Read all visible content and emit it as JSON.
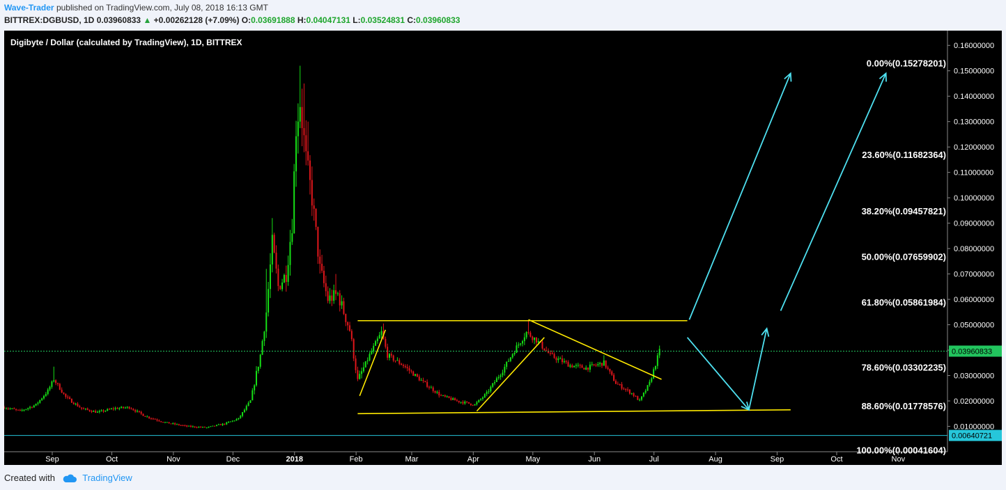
{
  "header": {
    "author": "Wave-Trader",
    "published": "published on TradingView.com, July 08, 2018 16:13 GMT",
    "symbol": "BITTREX:DGBUSD, 1D",
    "last": "0.03960833",
    "change_arrow": "▲",
    "change": "+0.00262128 (+7.09%)",
    "o_label": "O:",
    "o_value": "0.03691888",
    "h_label": "H:",
    "h_value": "0.04047131",
    "l_label": "L:",
    "l_value": "0.03524831",
    "c_label": "C:",
    "c_value": "0.03960833"
  },
  "footer": {
    "created_with": "Created with",
    "brand": "TradingView",
    "brand_icon": "cloud-icon"
  },
  "colors": {
    "up": "#16e016",
    "down": "#e0161b",
    "fib_text": "#ffffff",
    "yellow": "#ffea00",
    "cyan": "#4ee0f0",
    "price_tag": "#22c55e",
    "low_tag": "#26c6da",
    "axis_text": "#ffffff"
  },
  "chart_data": {
    "type": "candlestick",
    "title": "Digibyte / Dollar (calculated by TradingView), 1D, BITTREX",
    "ylim": [
      0.0,
      0.165
    ],
    "y_ticks": [
      "0.01000000",
      "0.02000000",
      "0.03000000",
      "0.04000000",
      "0.05000000",
      "0.06000000",
      "0.07000000",
      "0.08000000",
      "0.09000000",
      "0.10000000",
      "0.11000000",
      "0.12000000",
      "0.13000000",
      "0.14000000",
      "0.15000000",
      "0.16000000"
    ],
    "x_ticks": [
      "Sep",
      "Oct",
      "Nov",
      "Dec",
      "2018",
      "Feb",
      "Mar",
      "Apr",
      "May",
      "Jun",
      "Jul",
      "Aug",
      "Sep",
      "Oct",
      "Nov"
    ],
    "x_range": [
      "2017-08-12",
      "2018-11-30"
    ],
    "last_price": {
      "value": 0.03960833,
      "label": "0.03960833"
    },
    "low_line": {
      "value": 0.00640721,
      "label": "0.00640721"
    },
    "fib_levels": [
      {
        "value": 0.15278201,
        "label": "0.00%(0.15278201)"
      },
      {
        "value": 0.11682364,
        "label": "23.60%(0.11682364)"
      },
      {
        "value": 0.09457821,
        "label": "38.20%(0.09457821)"
      },
      {
        "value": 0.07659902,
        "label": "50.00%(0.07659902)"
      },
      {
        "value": 0.05861984,
        "label": "61.80%(0.05861984)"
      },
      {
        "value": 0.03302235,
        "label": "78.60%(0.03302235)"
      },
      {
        "value": 0.01778576,
        "label": "88.60%(0.01778576)"
      },
      {
        "value": 0.00041604,
        "label": "100.00%(0.00041604)"
      }
    ],
    "price_path": [
      [
        "2017-08-12",
        0.0175
      ],
      [
        "2017-08-20",
        0.016
      ],
      [
        "2017-08-28",
        0.0185
      ],
      [
        "2017-09-03",
        0.024
      ],
      [
        "2017-09-06",
        0.0285
      ],
      [
        "2017-09-12",
        0.0215
      ],
      [
        "2017-09-20",
        0.017
      ],
      [
        "2017-09-28",
        0.0155
      ],
      [
        "2017-10-06",
        0.017
      ],
      [
        "2017-10-14",
        0.0175
      ],
      [
        "2017-10-22",
        0.014
      ],
      [
        "2017-11-01",
        0.0115
      ],
      [
        "2017-11-12",
        0.01
      ],
      [
        "2017-11-22",
        0.0095
      ],
      [
        "2017-12-01",
        0.011
      ],
      [
        "2017-12-08",
        0.013
      ],
      [
        "2017-12-14",
        0.02
      ],
      [
        "2017-12-19",
        0.038
      ],
      [
        "2017-12-22",
        0.055
      ],
      [
        "2017-12-25",
        0.082
      ],
      [
        "2017-12-28",
        0.065
      ],
      [
        "2018-01-01",
        0.07
      ],
      [
        "2018-01-04",
        0.09
      ],
      [
        "2018-01-06",
        0.128
      ],
      [
        "2018-01-08",
        0.138
      ],
      [
        "2018-01-11",
        0.115
      ],
      [
        "2018-01-14",
        0.1
      ],
      [
        "2018-01-18",
        0.072
      ],
      [
        "2018-01-22",
        0.06
      ],
      [
        "2018-01-27",
        0.062
      ],
      [
        "2018-02-02",
        0.048
      ],
      [
        "2018-02-06",
        0.028
      ],
      [
        "2018-02-12",
        0.038
      ],
      [
        "2018-02-18",
        0.047
      ],
      [
        "2018-02-21",
        0.038
      ],
      [
        "2018-03-01",
        0.034
      ],
      [
        "2018-03-10",
        0.028
      ],
      [
        "2018-03-20",
        0.022
      ],
      [
        "2018-03-28",
        0.02
      ],
      [
        "2018-04-06",
        0.0185
      ],
      [
        "2018-04-12",
        0.023
      ],
      [
        "2018-04-20",
        0.032
      ],
      [
        "2018-04-26",
        0.04
      ],
      [
        "2018-05-02",
        0.047
      ],
      [
        "2018-05-07",
        0.044
      ],
      [
        "2018-05-14",
        0.038
      ],
      [
        "2018-05-24",
        0.034
      ],
      [
        "2018-06-01",
        0.033
      ],
      [
        "2018-06-10",
        0.035
      ],
      [
        "2018-06-16",
        0.027
      ],
      [
        "2018-06-24",
        0.023
      ],
      [
        "2018-06-28",
        0.02
      ],
      [
        "2018-07-03",
        0.027
      ],
      [
        "2018-07-08",
        0.0396
      ]
    ],
    "spikes": [
      [
        "2017-09-06",
        0.0335
      ],
      [
        "2017-12-22",
        0.072
      ],
      [
        "2017-12-25",
        0.092
      ],
      [
        "2018-01-08",
        0.152
      ],
      [
        "2018-01-10",
        0.145
      ],
      [
        "2018-01-12",
        0.13
      ],
      [
        "2018-01-26",
        0.07
      ],
      [
        "2018-02-19",
        0.0505
      ],
      [
        "2018-05-03",
        0.0515
      ],
      [
        "2018-06-10",
        0.038
      ]
    ],
    "trendlines": [
      {
        "from": [
          "2018-02-06",
          0.0516
        ],
        "to": [
          "2018-07-22",
          0.0516
        ],
        "color": "yellow"
      },
      {
        "from": [
          "2018-02-06",
          0.015
        ],
        "to": [
          "2018-09-12",
          0.0165
        ],
        "color": "yellow"
      },
      {
        "from": [
          "2018-02-07",
          0.022
        ],
        "to": [
          "2018-02-20",
          0.048
        ],
        "color": "yellow"
      },
      {
        "from": [
          "2018-04-07",
          0.016
        ],
        "to": [
          "2018-05-11",
          0.045
        ],
        "color": "yellow"
      },
      {
        "from": [
          "2018-05-03",
          0.052
        ],
        "to": [
          "2018-07-09",
          0.0285
        ],
        "color": "yellow"
      }
    ],
    "arrows": [
      {
        "from": [
          "2018-07-23",
          0.052
        ],
        "to": [
          "2018-09-12",
          0.149
        ],
        "color": "cyan"
      },
      {
        "from": [
          "2018-07-22",
          0.045
        ],
        "to": [
          "2018-08-22",
          0.0165
        ],
        "color": "cyan"
      },
      {
        "from": [
          "2018-08-22",
          0.0165
        ],
        "to": [
          "2018-08-31",
          0.0485
        ],
        "color": "cyan"
      },
      {
        "from": [
          "2018-09-07",
          0.0555
        ],
        "to": [
          "2018-10-30",
          0.149
        ],
        "color": "cyan"
      }
    ]
  }
}
